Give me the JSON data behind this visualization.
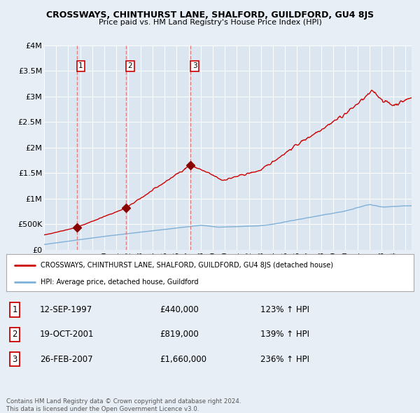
{
  "title": "CROSSWAYS, CHINTHURST LANE, SHALFORD, GUILDFORD, GU4 8JS",
  "subtitle": "Price paid vs. HM Land Registry's House Price Index (HPI)",
  "background_color": "#e8eef5",
  "plot_bg_color": "#dce6f0",
  "sale_years": [
    1997.71,
    2001.8,
    2007.15
  ],
  "sale_prices": [
    440000,
    819000,
    1660000
  ],
  "legend_house": "CROSSWAYS, CHINTHURST LANE, SHALFORD, GUILDFORD, GU4 8JS (detached house)",
  "legend_hpi": "HPI: Average price, detached house, Guildford",
  "table_rows": [
    [
      "1",
      "12-SEP-1997",
      "£440,000",
      "123% ↑ HPI"
    ],
    [
      "2",
      "19-OCT-2001",
      "£819,000",
      "139% ↑ HPI"
    ],
    [
      "3",
      "26-FEB-2007",
      "£1,660,000",
      "236% ↑ HPI"
    ]
  ],
  "footer": "Contains HM Land Registry data © Crown copyright and database right 2024.\nThis data is licensed under the Open Government Licence v3.0.",
  "ylim": [
    0,
    4000000
  ],
  "yticks": [
    0,
    500000,
    1000000,
    1500000,
    2000000,
    2500000,
    3000000,
    3500000,
    4000000
  ],
  "ytick_labels": [
    "£0",
    "£500K",
    "£1M",
    "£1.5M",
    "£2M",
    "£2.5M",
    "£3M",
    "£3.5M",
    "£4M"
  ],
  "house_color": "#cc0000",
  "hpi_color": "#7fb0d8",
  "marker_color": "#880000",
  "vline_color": "#e07070"
}
